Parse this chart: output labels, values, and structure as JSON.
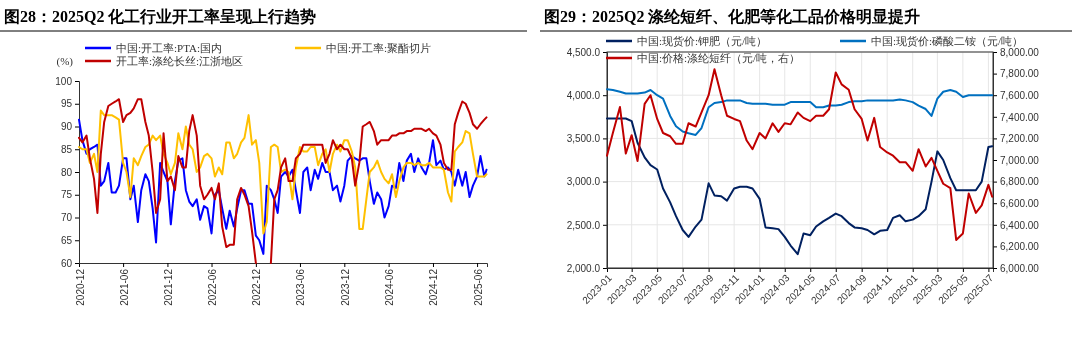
{
  "chart_data": [
    {
      "type": "line",
      "title": "图28：2025Q2 化工行业开工率呈现上行趋势",
      "ylabel": "(%)",
      "legend": "top",
      "x": [
        "2020-12-01",
        "2020-12-15",
        "2021-01-01",
        "2021-01-15",
        "2021-02-01",
        "2021-02-15",
        "2021-03-01",
        "2021-03-15",
        "2021-04-01",
        "2021-04-15",
        "2021-05-01",
        "2021-05-15",
        "2021-06-01",
        "2021-06-15",
        "2021-07-01",
        "2021-07-15",
        "2021-08-01",
        "2021-08-15",
        "2021-09-01",
        "2021-09-15",
        "2021-10-01",
        "2021-10-15",
        "2021-11-01",
        "2021-11-15",
        "2021-12-01",
        "2021-12-15",
        "2022-01-01",
        "2022-01-15",
        "2022-02-01",
        "2022-02-15",
        "2022-03-01",
        "2022-03-15",
        "2022-04-01",
        "2022-04-15",
        "2022-05-01",
        "2022-05-15",
        "2022-06-01",
        "2022-06-15",
        "2022-07-01",
        "2022-07-15",
        "2022-08-01",
        "2022-08-15",
        "2022-09-01",
        "2022-09-15",
        "2022-10-01",
        "2022-10-15",
        "2022-11-01",
        "2022-11-15",
        "2022-12-01",
        "2022-12-15",
        "2023-01-01",
        "2023-01-15",
        "2023-02-01",
        "2023-02-15",
        "2023-03-01",
        "2023-03-15",
        "2023-04-01",
        "2023-04-15",
        "2023-05-01",
        "2023-05-15",
        "2023-06-01",
        "2023-06-15",
        "2023-07-01",
        "2023-07-15",
        "2023-08-01",
        "2023-08-15",
        "2023-09-01",
        "2023-09-15",
        "2023-10-01",
        "2023-10-15",
        "2023-11-01",
        "2023-11-15",
        "2023-12-01",
        "2023-12-15",
        "2024-01-01",
        "2024-01-15",
        "2024-02-01",
        "2024-02-15",
        "2024-03-01",
        "2024-03-15",
        "2024-04-01",
        "2024-04-15",
        "2024-05-01",
        "2024-05-15",
        "2024-06-01",
        "2024-06-15",
        "2024-07-01",
        "2024-07-15",
        "2024-08-01",
        "2024-08-15",
        "2024-09-01",
        "2024-09-15",
        "2024-10-01",
        "2024-10-15",
        "2024-11-01",
        "2024-11-15",
        "2024-12-01",
        "2024-12-15",
        "2025-01-01",
        "2025-01-15",
        "2025-02-01",
        "2025-02-15",
        "2025-03-01",
        "2025-03-15",
        "2025-04-01",
        "2025-04-15",
        "2025-05-01",
        "2025-05-15",
        "2025-06-01",
        "2025-06-15",
        "2025-07-01",
        "2025-07-10"
      ],
      "xlim": [
        "2020-12-01",
        "2025-07-12"
      ],
      "xticks": [
        "2020-12",
        "2021-06",
        "2021-12",
        "2022-06",
        "2022-12",
        "2023-06",
        "2023-12",
        "2024-06",
        "2024-12",
        "2025-06"
      ],
      "ylim": [
        60,
        100
      ],
      "yticks": [
        60,
        65,
        70,
        75,
        80,
        85,
        90,
        95,
        100
      ],
      "series": [
        {
          "name": "中国:开工率:PTA:国内",
          "color": "#0000ff",
          "values": [
            91.5,
            87,
            84,
            85,
            85.5,
            86,
            77,
            78,
            82,
            75.5,
            75.5,
            77,
            83,
            83,
            74,
            77,
            69,
            76,
            79.5,
            78,
            72,
            64.5,
            82,
            80,
            78,
            68.5,
            78,
            82.5,
            83,
            76,
            73.5,
            72.5,
            74,
            69.5,
            72.5,
            72,
            66.5,
            75,
            76,
            72,
            67.5,
            71.5,
            68,
            72,
            76,
            76,
            73,
            73,
            66,
            65,
            62,
            77,
            76,
            74,
            71,
            79,
            80,
            79,
            80.5,
            76,
            71,
            80,
            81,
            76,
            80.5,
            78.5,
            82,
            80,
            80,
            76,
            77,
            73.5,
            77,
            82.5,
            83.5,
            83,
            82.5,
            83,
            83,
            78,
            73,
            75.5,
            74,
            70,
            72.5,
            77,
            76.5,
            82,
            78,
            82.5,
            84,
            80,
            83,
            81,
            79.5,
            82,
            87,
            81.5,
            82.5,
            80.5,
            81,
            80,
            77,
            80.5,
            77,
            80,
            74.5,
            77,
            79,
            83.5,
            79,
            80.5
          ]
        },
        {
          "name": "中国:开工率:聚酯切片",
          "color": "#ffc000",
          "values": [
            85.5,
            85,
            85,
            82,
            84,
            80,
            93.5,
            92.5,
            92.5,
            92.5,
            92,
            91.5,
            82,
            80,
            74.5,
            83,
            81.5,
            83.5,
            85.5,
            86,
            88,
            87,
            88,
            84,
            82,
            79.5,
            82,
            88.5,
            85,
            90,
            86,
            85,
            80,
            81,
            83.5,
            84,
            83,
            79,
            81,
            79.5,
            86.5,
            86.5,
            83,
            84,
            86.5,
            87.5,
            92.5,
            86,
            87,
            82,
            66.5,
            69,
            85.5,
            86,
            85.5,
            80,
            80.5,
            80,
            74,
            81,
            85.5,
            84.5,
            84.5,
            85.5,
            85.5,
            81.5,
            84,
            85,
            80,
            84,
            86,
            84.5,
            87,
            87,
            84.5,
            81,
            67.5,
            67.5,
            74,
            80,
            81,
            82.5,
            80,
            78.5,
            77.5,
            79.5,
            74.5,
            78,
            81,
            82,
            82,
            81.5,
            82,
            81.5,
            81.5,
            82,
            81,
            81,
            81,
            80.5,
            75.5,
            73.5,
            84.5,
            85.5,
            86.5,
            89,
            88.5,
            84,
            79,
            79,
            79,
            79.5
          ]
        },
        {
          "name": "开工率:涤纶长丝:江浙地区",
          "color": "#c00000",
          "values": [
            87.5,
            86.5,
            88,
            83,
            78.5,
            71,
            84,
            91,
            94.5,
            95,
            95.5,
            96,
            91,
            92.5,
            93,
            94,
            96,
            96,
            91,
            88,
            80,
            71,
            74,
            88.5,
            78,
            79,
            76,
            83.5,
            81,
            81,
            89,
            92.5,
            88,
            77,
            74,
            75,
            76.5,
            74,
            77.5,
            68,
            63.5,
            64,
            64,
            74,
            76.5,
            75,
            72.5,
            67,
            60,
            null,
            null,
            null,
            60,
            74,
            76,
            81,
            83,
            78,
            78,
            83,
            84,
            86,
            86,
            86,
            86,
            86,
            86,
            82,
            84,
            87,
            85,
            86,
            85,
            85,
            83,
            77,
            82,
            90,
            90.5,
            91,
            89,
            86,
            87,
            87,
            87,
            88,
            88,
            88.5,
            88.5,
            89,
            89,
            89.5,
            89.5,
            89.5,
            89,
            89.5,
            88.5,
            88,
            86,
            82,
            80.5,
            80.5,
            90.5,
            93,
            95.5,
            95,
            93,
            90.5,
            89.5,
            90.5,
            91.5,
            92
          ]
        }
      ]
    },
    {
      "type": "line",
      "title": "图29：2025Q2 涤纶短纤、化肥等化工品价格明显提升",
      "legend": "top",
      "grid": true,
      "x": [
        "2023-01-01",
        "2023-01-15",
        "2023-02-01",
        "2023-02-15",
        "2023-03-01",
        "2023-03-15",
        "2023-04-01",
        "2023-04-15",
        "2023-05-01",
        "2023-05-15",
        "2023-06-01",
        "2023-06-15",
        "2023-07-01",
        "2023-07-15",
        "2023-08-01",
        "2023-08-15",
        "2023-09-01",
        "2023-09-15",
        "2023-10-01",
        "2023-10-15",
        "2023-11-01",
        "2023-11-15",
        "2023-12-01",
        "2023-12-15",
        "2024-01-01",
        "2024-01-15",
        "2024-02-01",
        "2024-02-15",
        "2024-03-01",
        "2024-03-15",
        "2024-04-01",
        "2024-04-15",
        "2024-05-01",
        "2024-05-15",
        "2024-06-01",
        "2024-06-15",
        "2024-07-01",
        "2024-07-15",
        "2024-08-01",
        "2024-08-15",
        "2024-09-01",
        "2024-09-15",
        "2024-10-01",
        "2024-10-15",
        "2024-11-01",
        "2024-11-15",
        "2024-12-01",
        "2024-12-15",
        "2025-01-01",
        "2025-01-15",
        "2025-02-01",
        "2025-02-15",
        "2025-03-01",
        "2025-03-15",
        "2025-04-01",
        "2025-04-15",
        "2025-05-01",
        "2025-05-15",
        "2025-06-01",
        "2025-06-15",
        "2025-07-01",
        "2025-07-10"
      ],
      "xlim": [
        "2023-01-01",
        "2025-07-12"
      ],
      "xticks": [
        "2023-01",
        "2023-03",
        "2023-05",
        "2023-07",
        "2023-09",
        "2023-11",
        "2024-01",
        "2024-03",
        "2024-05",
        "2024-07",
        "2024-09",
        "2024-11",
        "2025-01",
        "2025-03",
        "2025-05",
        "2025-07"
      ],
      "ylim": [
        2000,
        4500
      ],
      "yticks": [
        {
          "value": 2000,
          "label": "2,000.0"
        },
        {
          "value": 2500,
          "label": "2,500.0"
        },
        {
          "value": 3000,
          "label": "3,000.0"
        },
        {
          "value": 3500,
          "label": "3,500.0"
        },
        {
          "value": 4000,
          "label": "4,000.0"
        },
        {
          "value": 4500,
          "label": "4,500.0"
        }
      ],
      "y2lim": [
        6000,
        8000
      ],
      "y2ticks": [
        {
          "value": 6000,
          "label": "6,000.00"
        },
        {
          "value": 6200,
          "label": "6,200.00"
        },
        {
          "value": 6400,
          "label": "6,400.00"
        },
        {
          "value": 6600,
          "label": "6,600.00"
        },
        {
          "value": 6800,
          "label": "6,800.00"
        },
        {
          "value": 7000,
          "label": "7,000.00"
        },
        {
          "value": 7200,
          "label": "7,200.00"
        },
        {
          "value": 7400,
          "label": "7,400.00"
        },
        {
          "value": 7600,
          "label": "7,600.00"
        },
        {
          "value": 7800,
          "label": "7,800.00"
        },
        {
          "value": 8000,
          "label": "8,000.00"
        }
      ],
      "series": [
        {
          "name": "中国:现货价:钾肥（元/吨）",
          "color": "#002060",
          "values": [
            3730,
            3730,
            3730,
            3730,
            3700,
            3450,
            3280,
            3190,
            3140,
            2920,
            2760,
            2600,
            2440,
            2360,
            2480,
            2560,
            2980,
            2840,
            2830,
            2780,
            2920,
            2940,
            2940,
            2920,
            2800,
            2470,
            2460,
            2450,
            2360,
            2260,
            2160,
            2400,
            2380,
            2480,
            2540,
            2580,
            2630,
            2600,
            2520,
            2470,
            2460,
            2440,
            2390,
            2430,
            2440,
            2580,
            2610,
            2540,
            2560,
            2600,
            2680,
            3000,
            3350,
            3250,
            3040,
            2900,
            2900,
            2900,
            2900,
            3000,
            3400,
            3410
          ]
        },
        {
          "name": "中国:现货价:磷酸二铵（元/吨）",
          "color": "#0070c0",
          "values": [
            4070,
            4060,
            4040,
            4020,
            4020,
            4020,
            4030,
            4060,
            4000,
            3960,
            3760,
            3640,
            3580,
            3560,
            3540,
            3620,
            3860,
            3910,
            3920,
            3940,
            3940,
            3940,
            3910,
            3900,
            3900,
            3900,
            3890,
            3890,
            3890,
            3920,
            3920,
            3920,
            3920,
            3860,
            3860,
            3880,
            3880,
            3890,
            3920,
            3930,
            3930,
            3940,
            3940,
            3940,
            3940,
            3940,
            3950,
            3940,
            3920,
            3880,
            3840,
            3760,
            3960,
            4040,
            4060,
            4040,
            3980,
            4000,
            4000,
            4000,
            4000,
            4000
          ]
        },
        {
          "name": "中国:价格:涤纶短纤（元/吨，右）",
          "color": "#c00000",
          "axis": "y2",
          "values": [
            7040,
            7250,
            7490,
            7060,
            7230,
            6990,
            7520,
            7600,
            7380,
            7250,
            7220,
            7150,
            7150,
            7340,
            7310,
            7440,
            7600,
            7840,
            7600,
            7410,
            7380,
            7360,
            7180,
            7100,
            7250,
            7200,
            7340,
            7260,
            7340,
            7330,
            7440,
            7390,
            7360,
            7410,
            7410,
            7470,
            7810,
            7700,
            7650,
            7470,
            7380,
            7180,
            7390,
            7120,
            7070,
            7040,
            6980,
            6980,
            6900,
            7100,
            6940,
            7020,
            6900,
            6780,
            6740,
            6260,
            6320,
            6690,
            6510,
            6580,
            6770,
            6660
          ]
        }
      ]
    }
  ]
}
